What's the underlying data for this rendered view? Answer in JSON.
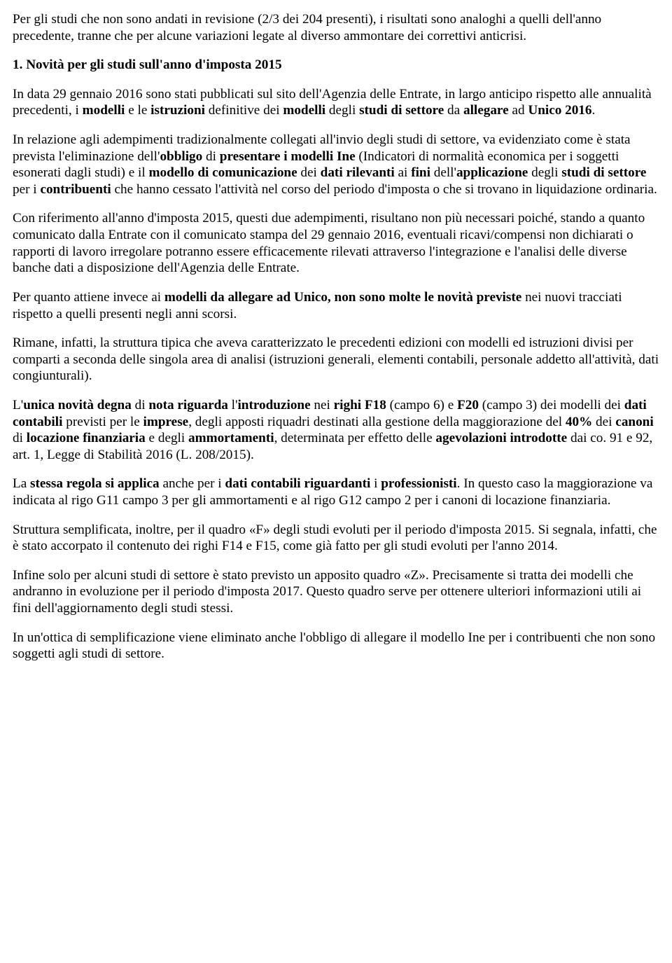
{
  "p1": "Per gli studi che non sono andati in revisione (2/3 dei 204 presenti), i risultati sono analoghi a quelli dell'anno precedente, tranne che per alcune variazioni legate al diverso ammontare dei correttivi anticrisi.",
  "h1": "1. Novità per gli studi sull'anno d'imposta 2015",
  "p2_a": "In data 29 gennaio 2016 sono stati pubblicati sul sito dell'Agenzia delle Entrate, in largo anticipo rispetto alle annualità precedenti, i ",
  "p2_b": "modelli",
  "p2_c": " e le ",
  "p2_d": "istruzioni",
  "p2_e": " definitive dei ",
  "p2_f": "modelli",
  "p2_g": " degli ",
  "p2_h": "studi di settore",
  "p2_i": " da ",
  "p2_j": "allegare",
  "p2_k": " ad ",
  "p2_l": "Unico 2016",
  "p2_m": ".",
  "p3_a": "In relazione agli adempimenti tradizionalmente collegati all'invio degli studi di settore, va evidenziato come è stata prevista l'eliminazione dell'",
  "p3_b": "obbligo",
  "p3_c": " di ",
  "p3_d": "presentare i modelli Ine",
  "p3_e": " (Indicatori di normalità economica per i soggetti esonerati dagli studi) e il ",
  "p3_f": "modello di comunicazione",
  "p3_g": " dei ",
  "p3_h": "dati rilevanti",
  "p3_i": " ai ",
  "p3_j": "fini",
  "p3_k": " dell'",
  "p3_l": "applicazione",
  "p3_m": " degli ",
  "p3_n": "studi di settore",
  "p3_o": " per i ",
  "p3_p": "contribuenti",
  "p3_q": " che hanno cessato l'attività nel corso del periodo d'imposta o che si trovano in liquidazione ordinaria.",
  "p4": "Con riferimento all'anno d'imposta 2015, questi due adempimenti, risultano non più necessari poiché, stando a quanto comunicato dalla Entrate con il comunicato stampa del 29 gennaio 2016, eventuali ricavi/compensi non dichiarati o rapporti di lavoro irregolare potranno essere efficacemente rilevati attraverso l'integrazione e l'analisi delle diverse banche dati a disposizione dell'Agenzia delle Entrate.",
  "p5_a": "Per quanto attiene invece ai ",
  "p5_b": "modelli da allegare ad Unico, non sono molte le novità previste",
  "p5_c": " nei nuovi tracciati rispetto a quelli presenti negli anni scorsi.",
  "p6": "Rimane, infatti, la struttura tipica che aveva caratterizzato le precedenti edizioni con modelli ed istruzioni divisi per comparti a seconda delle singola area di analisi (istruzioni generali, elementi contabili, personale addetto all'attività, dati congiunturali).",
  "p7_a": "L'",
  "p7_b": "unica novità degna",
  "p7_c": " di ",
  "p7_d": "nota riguarda",
  "p7_e": " l'",
  "p7_f": "introduzione",
  "p7_g": " nei ",
  "p7_h": "righi F18",
  "p7_i": " (campo 6) e ",
  "p7_j": "F20",
  "p7_k": " (campo 3) dei modelli dei ",
  "p7_l": "dati contabili",
  "p7_m": " previsti per le ",
  "p7_n": "imprese",
  "p7_o": ", degli apposti riquadri destinati alla gestione della maggiorazione del ",
  "p7_p": "40%",
  "p7_q": " dei ",
  "p7_r": "canoni",
  "p7_s": " di ",
  "p7_t": "locazione finanziaria",
  "p7_u": " e degli ",
  "p7_v": "ammortamenti",
  "p7_w": ", determinata per effetto delle ",
  "p7_x": "agevolazioni introdotte",
  "p7_y": " dai co. 91 e 92, art. 1, Legge di Stabilità 2016 (L. 208/2015).",
  "p8_a": "La ",
  "p8_b": "stessa regola si applica",
  "p8_c": " anche per i ",
  "p8_d": "dati contabili riguardanti",
  "p8_e": " i ",
  "p8_f": "professionisti",
  "p8_g": ". In questo caso la maggiorazione va indicata al rigo G11 campo 3 per gli ammortamenti e al rigo G12 campo 2 per i canoni di locazione finanziaria.",
  "p9": "Struttura semplificata, inoltre, per il quadro «F» degli studi evoluti per il periodo d'imposta 2015. Si segnala, infatti, che è stato accorpato il contenuto dei righi F14 e F15, come già fatto per gli studi evoluti per l'anno 2014.",
  "p10": "Infine solo per alcuni studi di settore è stato previsto un apposito quadro «Z». Precisamente si tratta dei modelli che andranno in evoluzione per il periodo d'imposta 2017. Questo quadro serve per ottenere ulteriori informazioni utili ai fini dell'aggiornamento degli studi stessi.",
  "p11": "In un'ottica di semplificazione viene eliminato anche l'obbligo di allegare il modello Ine per i contribuenti che non sono soggetti agli studi di settore."
}
